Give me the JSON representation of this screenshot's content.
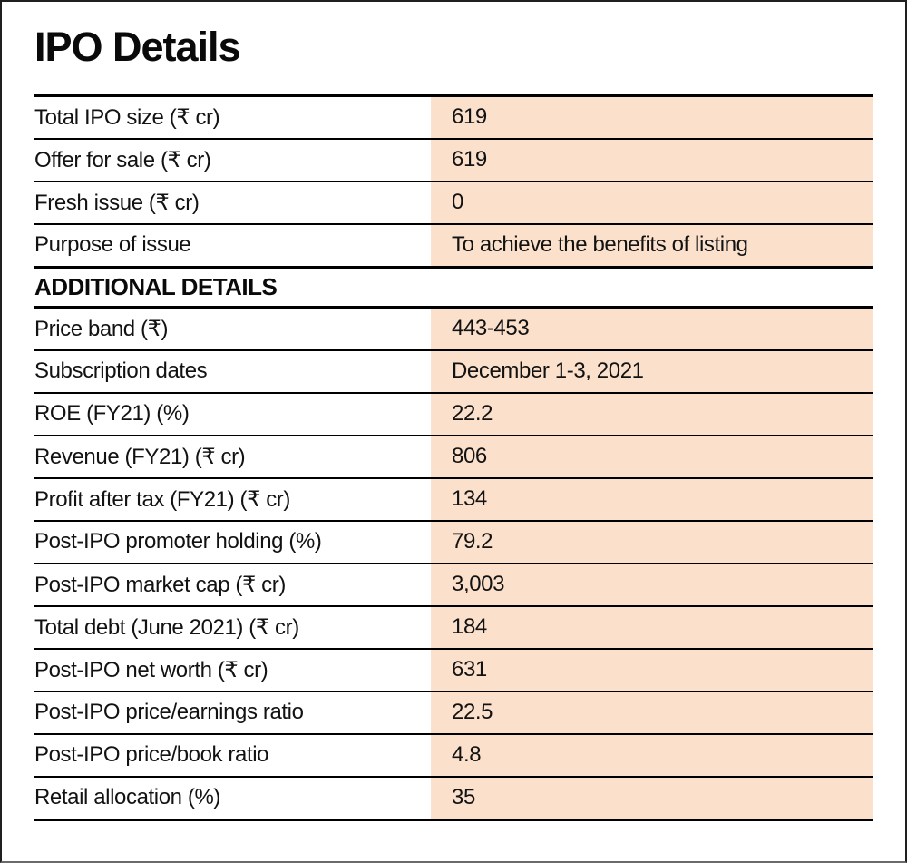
{
  "title": "IPO Details",
  "section_header": "ADDITIONAL DETAILS",
  "colors": {
    "highlight": "#fbe0cc",
    "rule": "#000000",
    "text": "#121212"
  },
  "rows_top": [
    {
      "label": "Total IPO size (₹ cr)",
      "value": "619"
    },
    {
      "label": "Offer for sale (₹ cr)",
      "value": "619"
    },
    {
      "label": "Fresh issue (₹ cr)",
      "value": "0"
    },
    {
      "label": "Purpose of issue",
      "value": "To achieve the benefits of listing"
    }
  ],
  "rows_additional": [
    {
      "label": "Price band (₹)",
      "value": "443-453"
    },
    {
      "label": "Subscription dates",
      "value": "December 1-3, 2021"
    },
    {
      "label": "ROE (FY21) (%)",
      "value": "22.2"
    },
    {
      "label": "Revenue (FY21) (₹ cr)",
      "value": "806"
    },
    {
      "label": "Profit after tax (FY21) (₹ cr)",
      "value": "134"
    },
    {
      "label": "Post-IPO promoter holding (%)",
      "value": "79.2"
    },
    {
      "label": "Post-IPO market cap (₹ cr)",
      "value": "3,003"
    },
    {
      "label": "Total debt (June 2021) (₹ cr)",
      "value": "184"
    },
    {
      "label": "Post-IPO net worth (₹ cr)",
      "value": "631"
    },
    {
      "label": "Post-IPO price/earnings ratio",
      "value": "22.5"
    },
    {
      "label": "Post-IPO price/book ratio",
      "value": "4.8"
    },
    {
      "label": "Retail allocation (%)",
      "value": "35"
    }
  ]
}
